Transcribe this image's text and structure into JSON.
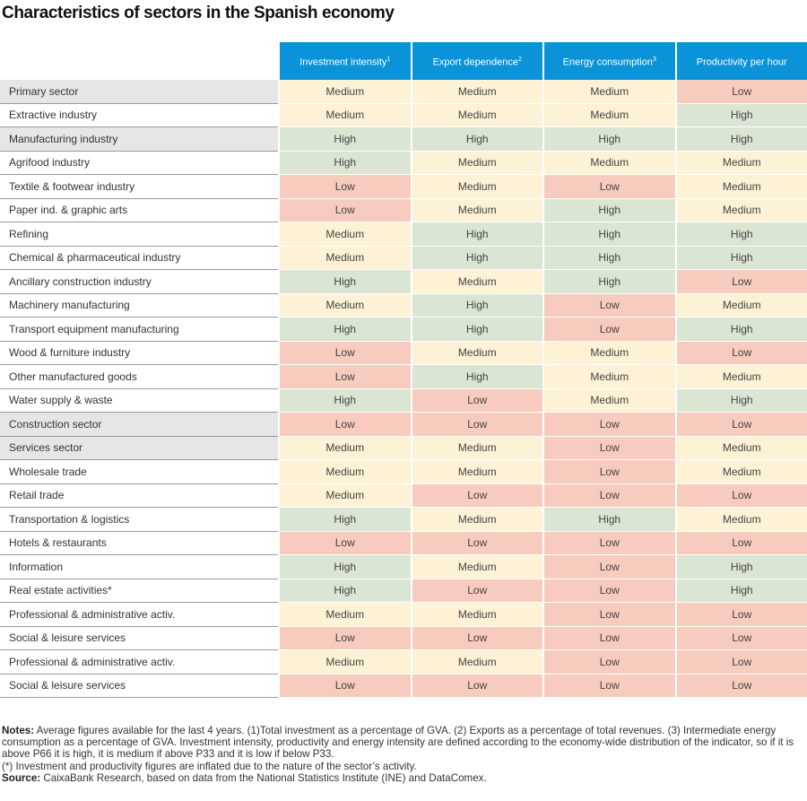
{
  "title": "Characteristics of sectors in the Spanish economy",
  "colors": {
    "header": "#0a93d8",
    "high": "#dbe5d4",
    "medium": "#fdf2d5",
    "low": "#f7cbbd",
    "aggregate_row": "#e6e6e6"
  },
  "columns": [
    {
      "text": "Investment intensity",
      "sup": "1"
    },
    {
      "text": "Export dependence",
      "sup": "2"
    },
    {
      "text": "Energy consumption",
      "sup": "3"
    },
    {
      "text": "Productivity per hour",
      "sup": ""
    }
  ],
  "rows": [
    {
      "label": "Primary sector",
      "aggregate": true,
      "values": [
        "Medium",
        "Medium",
        "Medium",
        "Low"
      ]
    },
    {
      "label": "Extractive industry",
      "aggregate": false,
      "values": [
        "Medium",
        "Medium",
        "Medium",
        "High"
      ]
    },
    {
      "label": "Manufacturing industry",
      "aggregate": true,
      "values": [
        "High",
        "High",
        "High",
        "High"
      ]
    },
    {
      "label": "Agrifood industry",
      "aggregate": false,
      "values": [
        "High",
        "Medium",
        "Medium",
        "Medium"
      ]
    },
    {
      "label": "Textile & footwear industry",
      "aggregate": false,
      "values": [
        "Low",
        "Medium",
        "Low",
        "Medium"
      ]
    },
    {
      "label": "Paper ind. & graphic arts",
      "aggregate": false,
      "values": [
        "Low",
        "Medium",
        "High",
        "Medium"
      ]
    },
    {
      "label": "Refining",
      "aggregate": false,
      "values": [
        "Medium",
        "High",
        "High",
        "High"
      ]
    },
    {
      "label": "Chemical & pharmaceutical industry",
      "aggregate": false,
      "values": [
        "Medium",
        "High",
        "High",
        "High"
      ]
    },
    {
      "label": "Ancillary construction industry",
      "aggregate": false,
      "values": [
        "High",
        "Medium",
        "High",
        "Low"
      ]
    },
    {
      "label": "Machinery manufacturing",
      "aggregate": false,
      "values": [
        "Medium",
        "High",
        "Low",
        "Medium"
      ]
    },
    {
      "label": "Transport equipment manufacturing",
      "aggregate": false,
      "values": [
        "High",
        "High",
        "Low",
        "High"
      ]
    },
    {
      "label": "Wood & furniture industry",
      "aggregate": false,
      "values": [
        "Low",
        "Medium",
        "Medium",
        "Low"
      ]
    },
    {
      "label": "Other manufactured goods",
      "aggregate": false,
      "values": [
        "Low",
        "High",
        "Medium",
        "Medium"
      ]
    },
    {
      "label": "Water supply & waste",
      "aggregate": false,
      "values": [
        "High",
        "Low",
        "Medium",
        "High"
      ]
    },
    {
      "label": "Construction sector",
      "aggregate": true,
      "values": [
        "Low",
        "Low",
        "Low",
        "Low"
      ]
    },
    {
      "label": "Services sector",
      "aggregate": true,
      "values": [
        "Medium",
        "Medium",
        "Low",
        "Medium"
      ]
    },
    {
      "label": "Wholesale trade",
      "aggregate": false,
      "values": [
        "Medium",
        "Medium",
        "Low",
        "Medium"
      ]
    },
    {
      "label": "Retail trade",
      "aggregate": false,
      "values": [
        "Medium",
        "Low",
        "Low",
        "Low"
      ]
    },
    {
      "label": "Transportation & logistics",
      "aggregate": false,
      "values": [
        "High",
        "Medium",
        "High",
        "Medium"
      ]
    },
    {
      "label": "Hotels & restaurants",
      "aggregate": false,
      "values": [
        "Low",
        "Low",
        "Low",
        "Low"
      ]
    },
    {
      "label": "Information",
      "aggregate": false,
      "values": [
        "High",
        "Medium",
        "Low",
        "High"
      ]
    },
    {
      "label": "Real estate activities*",
      "aggregate": false,
      "values": [
        "High",
        "Low",
        "Low",
        "High"
      ]
    },
    {
      "label": "Professional & administrative activ.",
      "aggregate": false,
      "values": [
        "Medium",
        "Medium",
        "Low",
        "Low"
      ]
    },
    {
      "label": "Social & leisure services",
      "aggregate": false,
      "values": [
        "Low",
        "Low",
        "Low",
        "Low"
      ]
    },
    {
      "label": "Professional & administrative activ.",
      "aggregate": false,
      "values": [
        "Medium",
        "Medium",
        "Low",
        "Low"
      ]
    },
    {
      "label": "Social & leisure services",
      "aggregate": false,
      "values": [
        "Low",
        "Low",
        "Low",
        "Low"
      ]
    }
  ],
  "notes": {
    "notes_label": "Notes:",
    "notes_text": "Average figures available for the last 4 years. (1)Total investment as a percentage of GVA. (2) Exports as a percentage of total revenues. (3) Intermediate energy consumption as a percentage of GVA. Investment intensity, productivity and energy intensity are defined according to the economy-wide distribution of the indicator, so if it is above P66 it is high, it is medium if above P33 and it is low if below P33.",
    "asterisk_note": "(*) Investment and productivity figures are inflated due to the nature of the sector’s activity.",
    "source_label": "Source:",
    "source_text": "CaixaBank Research, based on data from the National Statistics Institute (INE) and DataComex."
  }
}
